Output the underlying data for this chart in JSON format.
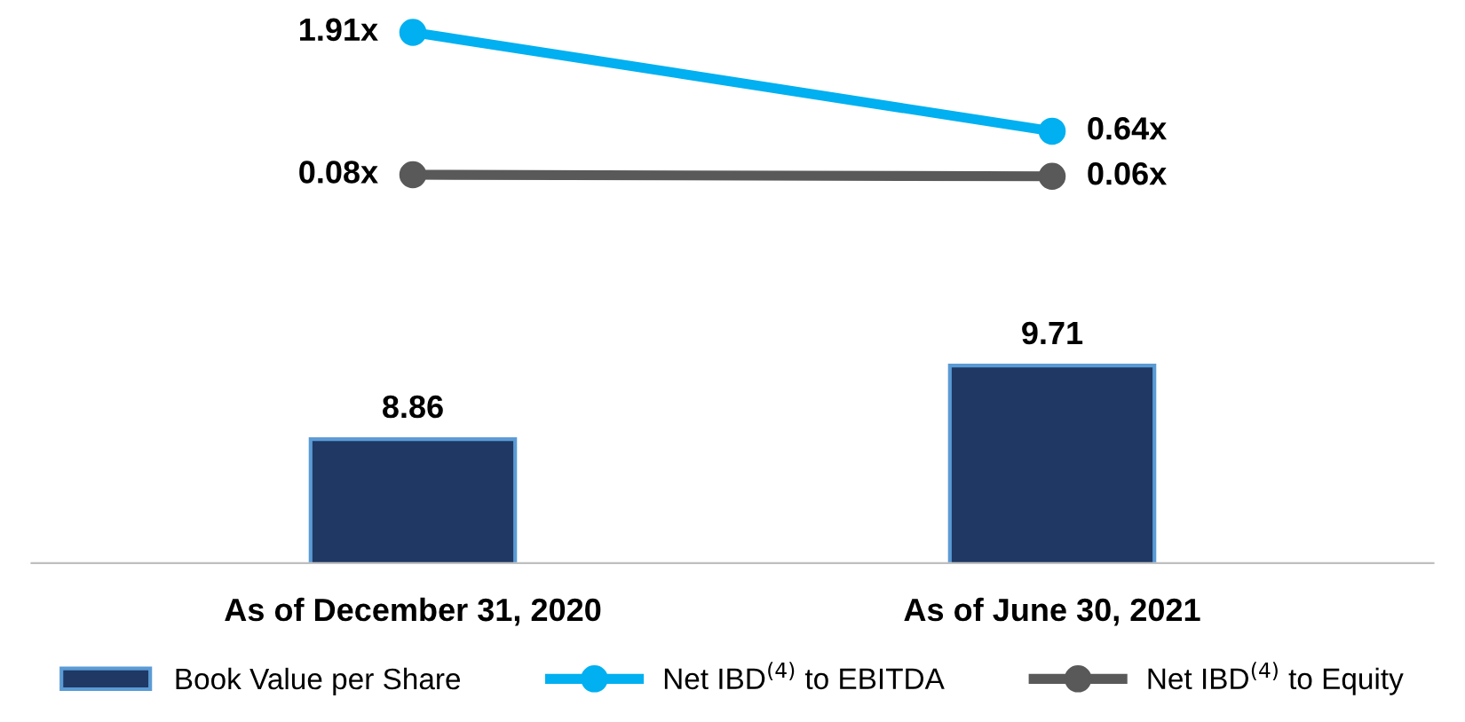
{
  "chart_data": {
    "type": "bar",
    "categories": [
      "As of December 31, 2020",
      "As of June 30, 2021"
    ],
    "series": [
      {
        "name": "Book Value per Share",
        "color": "#1f3864",
        "values": [
          8.86,
          9.71
        ],
        "value_labels": [
          "8.86",
          "9.71"
        ]
      },
      {
        "name": "Net IBD$^{(4)}$ to EBITDA",
        "type": "line",
        "axis": "y2",
        "color": "#00b0f0",
        "values": [
          1.91,
          0.64
        ],
        "value_labels": [
          "1.91x",
          "0.64x"
        ]
      },
      {
        "name": "Net IBD$^{(4)}$ to Equity",
        "type": "line",
        "axis": "y2",
        "color": "#595959",
        "values": [
          0.08,
          0.06
        ],
        "value_labels": [
          "0.08x",
          "0.06x"
        ]
      }
    ],
    "ylim": [
      7.43,
      13.76
    ],
    "y2lim": [
      -4.91,
      2.14
    ],
    "tick_labels": "x",
    "grid": false,
    "legend": "bottom",
    "marker": "circle",
    "line_style": "solid"
  }
}
